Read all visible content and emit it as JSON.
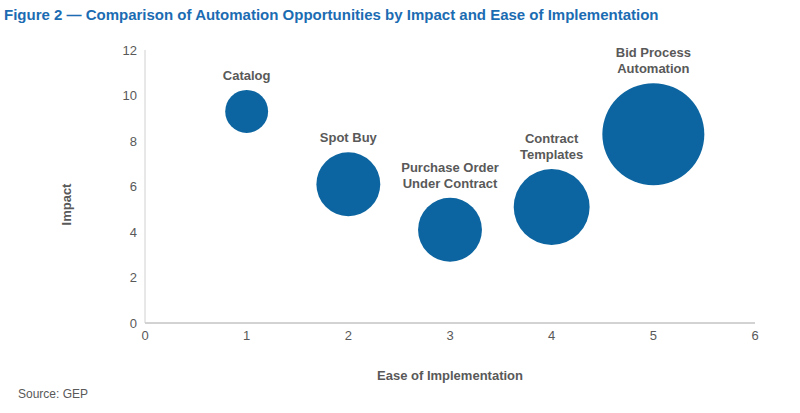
{
  "chart_data": {
    "type": "bubble",
    "title": "Figure 2 — Comparison of Automation Opportunities by Impact and Ease of Implementation",
    "x_label": "Ease of Implementation",
    "y_label": "Impact",
    "source": "Source: GEP",
    "labels": [
      "Catalog",
      "Spot Buy",
      "Purchase Order Under Contract",
      "Contract Templates",
      "Bid Process Automation"
    ],
    "x": [
      1,
      2,
      3,
      4,
      5
    ],
    "values": [
      9.3,
      6.1,
      4.1,
      5.1,
      8.3
    ],
    "sizes": [
      4.6,
      10.2,
      10.2,
      14.4,
      26
    ],
    "color": "#0c65a0",
    "xlim": [
      0,
      6
    ],
    "xticks": [
      0,
      1,
      2,
      3,
      4,
      5,
      6
    ],
    "ylim": [
      0,
      12
    ],
    "yticks": [
      0,
      2,
      4,
      6,
      8,
      10,
      12
    ],
    "grid": false
  }
}
